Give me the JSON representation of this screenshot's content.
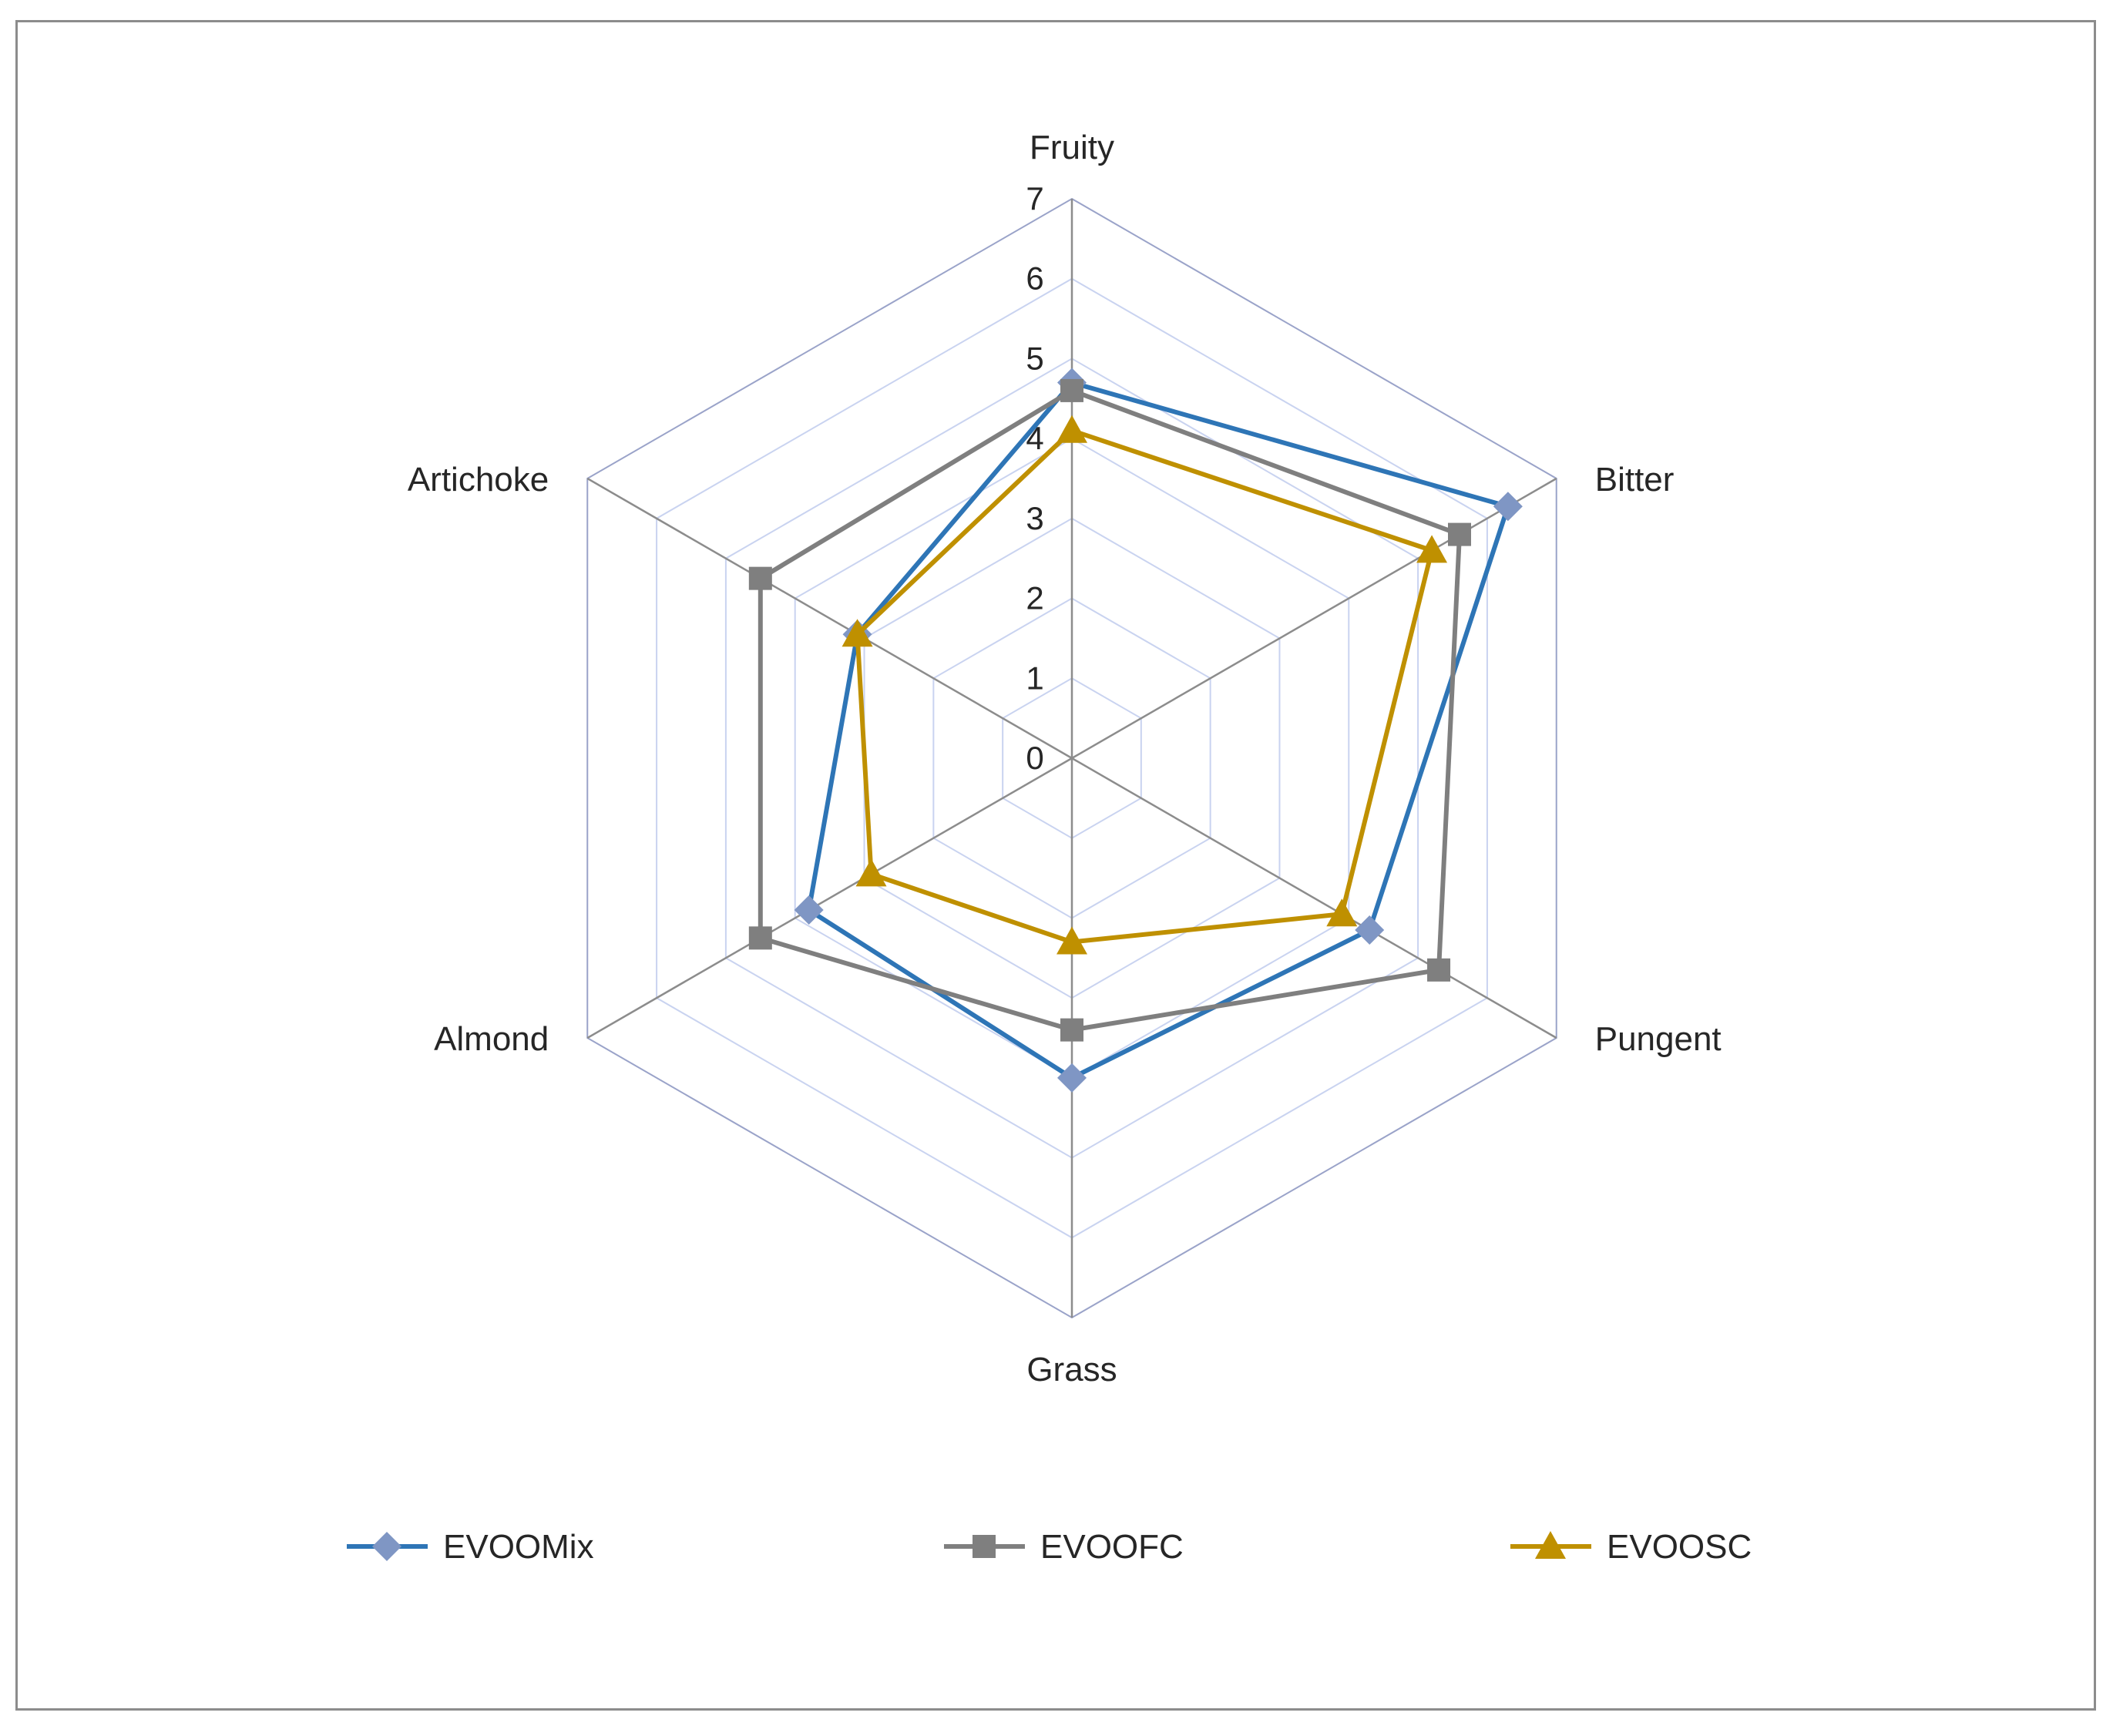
{
  "chart_data": {
    "type": "radar",
    "axes": [
      "Fruity",
      "Bitter",
      "Pungent",
      "Grass",
      "Almond",
      "Artichoke"
    ],
    "range": [
      0,
      7
    ],
    "ticks": [
      "0",
      "1",
      "2",
      "3",
      "4",
      "5",
      "6",
      "7"
    ],
    "legend_position": "bottom",
    "series": [
      {
        "name": "EVOOMix",
        "values": [
          4.7,
          6.3,
          4.3,
          4.0,
          3.8,
          3.1
        ],
        "color": "#2E75B6",
        "marker": "diamond",
        "marker_color": "#7F96C4"
      },
      {
        "name": "EVOOFC",
        "values": [
          4.6,
          5.6,
          5.3,
          3.4,
          4.5,
          4.5
        ],
        "color": "#7F7F7F",
        "marker": "square",
        "marker_color": "#7F7F7F"
      },
      {
        "name": "EVOOSC",
        "values": [
          4.1,
          5.2,
          3.9,
          2.3,
          2.9,
          3.1
        ],
        "color": "#BF9000",
        "marker": "triangle",
        "marker_color": "#BF9000"
      }
    ]
  }
}
